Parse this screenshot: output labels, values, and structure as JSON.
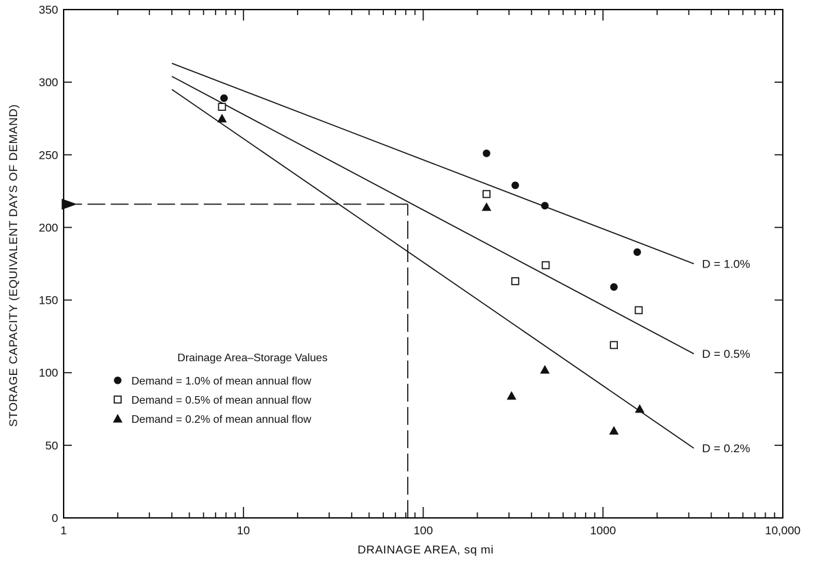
{
  "chart_data": {
    "type": "scatter",
    "title": "",
    "xlabel": "DRAINAGE AREA, sq mi",
    "ylabel": "STORAGE CAPACITY (EQUIVALENT DAYS OF DEMAND)",
    "x_scale": "log",
    "xlim": [
      1,
      10000
    ],
    "ylim": [
      0,
      350
    ],
    "x_ticks": [
      {
        "value": 1,
        "label": "1"
      },
      {
        "value": 10,
        "label": "10"
      },
      {
        "value": 100,
        "label": "100"
      },
      {
        "value": 1000,
        "label": "1000"
      },
      {
        "value": 10000,
        "label": "10,000"
      }
    ],
    "y_ticks": [
      {
        "value": 0,
        "label": "0"
      },
      {
        "value": 50,
        "label": "50"
      },
      {
        "value": 100,
        "label": "100"
      },
      {
        "value": 150,
        "label": "150"
      },
      {
        "value": 200,
        "label": "200"
      },
      {
        "value": 250,
        "label": "250"
      },
      {
        "value": 300,
        "label": "300"
      },
      {
        "value": 350,
        "label": "350"
      }
    ],
    "grid": false,
    "legend": {
      "title": "Drainage Area–Storage Values",
      "placement": "lower-left",
      "entries": [
        {
          "marker": "filled-circle",
          "label": "Demand = 1.0% of mean annual flow"
        },
        {
          "marker": "open-square",
          "label": "Demand = 0.5% of mean annual flow"
        },
        {
          "marker": "filled-triangle",
          "label": "Demand = 0.2% of mean annual flow"
        }
      ]
    },
    "series": [
      {
        "name": "Demand = 1.0% of mean annual flow",
        "marker": "filled-circle",
        "points": [
          [
            7.8,
            289
          ],
          [
            225,
            251
          ],
          [
            325,
            229
          ],
          [
            475,
            215
          ],
          [
            1150,
            159
          ],
          [
            1550,
            183
          ]
        ],
        "fit_line": {
          "from": [
            4,
            313
          ],
          "to": [
            3200,
            175
          ],
          "label": "D = 1.0%"
        }
      },
      {
        "name": "Demand = 0.5% of mean annual flow",
        "marker": "open-square",
        "points": [
          [
            7.6,
            283
          ],
          [
            225,
            223
          ],
          [
            325,
            163
          ],
          [
            480,
            174
          ],
          [
            1150,
            119
          ],
          [
            1580,
            143
          ]
        ],
        "fit_line": {
          "from": [
            4,
            304
          ],
          "to": [
            3200,
            113
          ],
          "label": "D = 0.5%"
        }
      },
      {
        "name": "Demand = 0.2% of mean annual flow",
        "marker": "filled-triangle",
        "points": [
          [
            7.6,
            275
          ],
          [
            225,
            214
          ],
          [
            310,
            84
          ],
          [
            475,
            102
          ],
          [
            1150,
            60
          ],
          [
            1600,
            75
          ]
        ],
        "fit_line": {
          "from": [
            4,
            295
          ],
          "to": [
            3200,
            48
          ],
          "label": "D = 0.2%"
        }
      }
    ],
    "annotations": [
      {
        "type": "dashed-guide",
        "from": [
          82,
          0
        ],
        "corner": [
          82,
          216
        ],
        "to": [
          1,
          216
        ],
        "arrow": "left"
      }
    ]
  }
}
